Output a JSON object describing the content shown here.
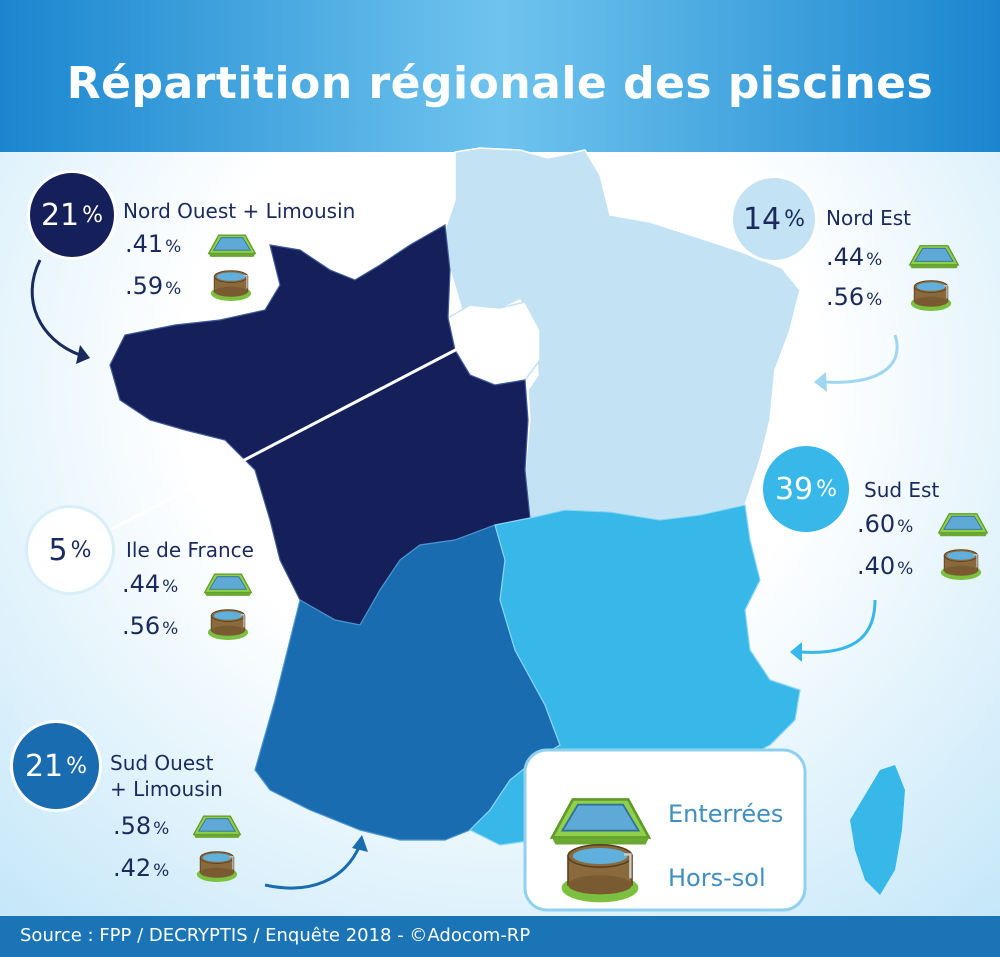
{
  "title": "Répartition régionale des piscines",
  "source": "Source : FPP / DECRYPTIS / Enquête 2018 - ©Adocom-RP",
  "percent_sign": "%",
  "regions": {
    "nord_ouest": {
      "share": "21",
      "name": "Nord Ouest + Limousin",
      "enterrees": ".41",
      "hors_sol": ".59"
    },
    "nord_est": {
      "share": "14",
      "name": "Nord Est",
      "enterrees": ".44",
      "hors_sol": ".56"
    },
    "ile_de_france": {
      "share": "5",
      "name": "Ile de France",
      "enterrees": ".44",
      "hors_sol": ".56"
    },
    "sud_est": {
      "share": "39",
      "name": "Sud Est",
      "enterrees": ".60",
      "hors_sol": ".40"
    },
    "sud_ouest": {
      "share": "21",
      "name_line1": "Sud Ouest",
      "name_line2": "+ Limousin",
      "enterrees": ".58",
      "hors_sol": ".42"
    }
  },
  "legend": {
    "enterrees": "Enterrées",
    "hors_sol": "Hors-sol"
  },
  "colors": {
    "nord_ouest": "#15205a",
    "nord_est": "#c3e2f4",
    "ile_de_france": "#ffffff",
    "sud_est": "#37b8e8",
    "sud_ouest": "#1a6cb0",
    "banner": "#1a8fd3",
    "text_dark": "#1b2a5c"
  },
  "icons": [
    "inground-pool-icon",
    "above-ground-pool-icon",
    "curved-arrow-icon"
  ]
}
